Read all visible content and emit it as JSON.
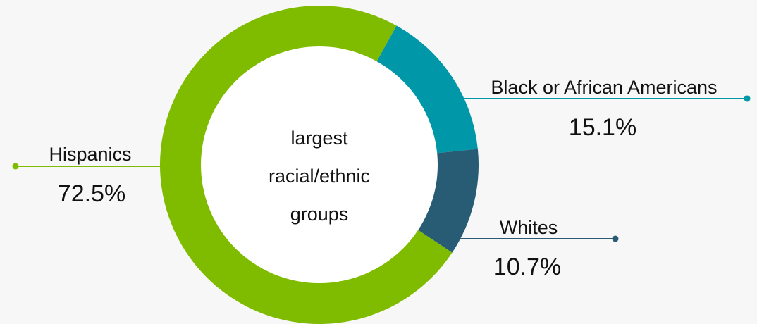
{
  "chart_data": {
    "type": "pie",
    "center_label": [
      "largest",
      "racial/ethnic",
      "groups"
    ],
    "slices": [
      {
        "name": "Hispanics",
        "value": 72.5,
        "display": "72.5%",
        "color": "#7fbc00"
      },
      {
        "name": "Black or African Americans",
        "value": 15.1,
        "display": "15.1%",
        "color": "#0098a8"
      },
      {
        "name": "Whites",
        "value": 10.7,
        "display": "10.7%",
        "color": "#285c75"
      }
    ]
  }
}
